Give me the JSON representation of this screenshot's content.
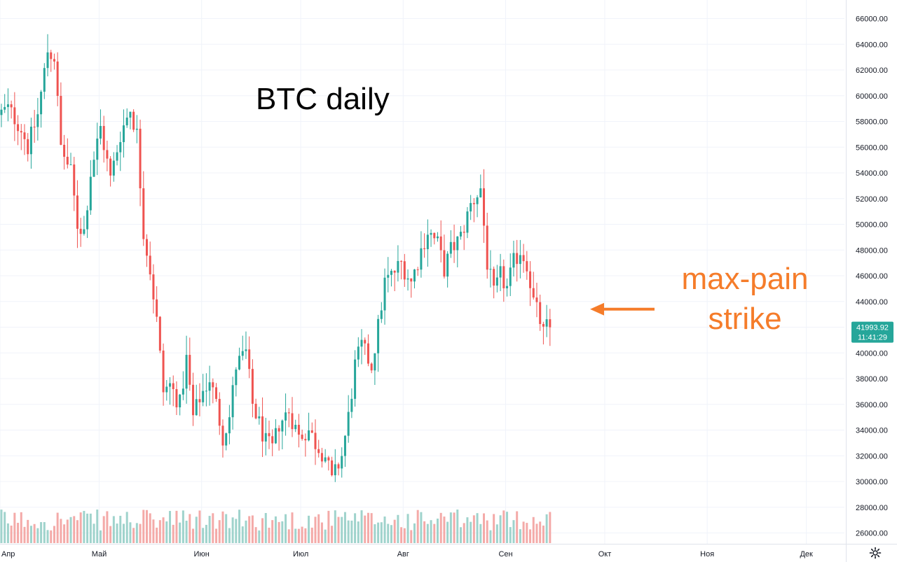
{
  "chart_data": {
    "type": "candlestick",
    "title": "BTC daily",
    "annotation": {
      "lines": [
        "max-pain",
        "strike"
      ],
      "color": "#f57c2a",
      "target_price": 43400
    },
    "y_ticks": [
      "66000.00",
      "64000.00",
      "62000.00",
      "60000.00",
      "58000.00",
      "56000.00",
      "54000.00",
      "52000.00",
      "50000.00",
      "48000.00",
      "46000.00",
      "44000.00",
      "42000.00",
      "40000.00",
      "38000.00",
      "36000.00",
      "34000.00",
      "32000.00",
      "30000.00",
      "28000.00",
      "26000.00"
    ],
    "ylim": [
      25200,
      66800
    ],
    "x_ticks": [
      "Апр",
      "Май",
      "Июн",
      "Июл",
      "Авг",
      "Сен",
      "Окт",
      "Ноя",
      "Дек"
    ],
    "x_tick_days": [
      0,
      30,
      61,
      91,
      122,
      153,
      183,
      214,
      244
    ],
    "xlim_days": [
      0,
      260
    ],
    "last_price": {
      "value": "41993.92",
      "countdown": "11:41:29",
      "price": 41993.92
    },
    "colors": {
      "up": "#26a69a",
      "down": "#ef5350",
      "up_vol": "#9fd3cc",
      "down_vol": "#f4aaa8",
      "grid": "#f0f3fa",
      "tag": "#26a69a"
    },
    "waypoints": [
      [
        0,
        58500
      ],
      [
        3,
        59000
      ],
      [
        7,
        57500
      ],
      [
        9,
        56000
      ],
      [
        12,
        58500
      ],
      [
        15,
        63500
      ],
      [
        17,
        63000
      ],
      [
        19,
        56000
      ],
      [
        22,
        54000
      ],
      [
        24,
        50000
      ],
      [
        26,
        49500
      ],
      [
        28,
        54000
      ],
      [
        31,
        57500
      ],
      [
        34,
        53500
      ],
      [
        37,
        57000
      ],
      [
        40,
        59000
      ],
      [
        42,
        57000
      ],
      [
        44,
        49500
      ],
      [
        46,
        46500
      ],
      [
        48,
        42500
      ],
      [
        50,
        37000
      ],
      [
        52,
        37500
      ],
      [
        55,
        36000
      ],
      [
        57,
        39500
      ],
      [
        59,
        35000
      ],
      [
        61,
        36500
      ],
      [
        64,
        38000
      ],
      [
        66,
        36000
      ],
      [
        68,
        33500
      ],
      [
        70,
        35000
      ],
      [
        72,
        39000
      ],
      [
        75,
        40000
      ],
      [
        77,
        36000
      ],
      [
        79,
        34500
      ],
      [
        81,
        33000
      ],
      [
        83,
        32500
      ],
      [
        85,
        34500
      ],
      [
        88,
        35500
      ],
      [
        91,
        33500
      ],
      [
        94,
        34000
      ],
      [
        96,
        33000
      ],
      [
        99,
        32000
      ],
      [
        101,
        30000
      ],
      [
        104,
        32000
      ],
      [
        106,
        35000
      ],
      [
        108,
        39000
      ],
      [
        110,
        40500
      ],
      [
        113,
        39000
      ],
      [
        115,
        42000
      ],
      [
        117,
        45500
      ],
      [
        119,
        46000
      ],
      [
        122,
        47000
      ],
      [
        125,
        45500
      ],
      [
        128,
        48000
      ],
      [
        130,
        49500
      ],
      [
        133,
        48500
      ],
      [
        135,
        46500
      ],
      [
        137,
        48000
      ],
      [
        140,
        49000
      ],
      [
        143,
        51500
      ],
      [
        146,
        52800
      ],
      [
        148,
        47000
      ],
      [
        150,
        44500
      ],
      [
        152,
        46000
      ],
      [
        154,
        45000
      ],
      [
        156,
        47000
      ],
      [
        158,
        48000
      ],
      [
        160,
        47000
      ],
      [
        162,
        44000
      ],
      [
        164,
        42500
      ],
      [
        165,
        41500
      ],
      [
        166,
        42000
      ]
    ],
    "candle_count": 167
  }
}
